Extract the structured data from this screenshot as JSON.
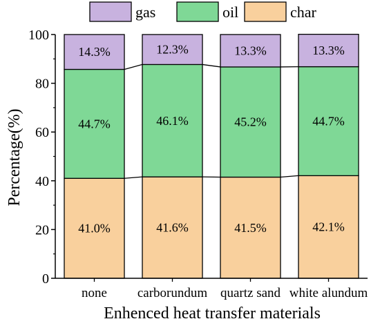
{
  "chart_data": {
    "type": "bar",
    "stacked": true,
    "xlabel": "Enhenced heat transfer materials",
    "ylabel": "Percentage(%)",
    "ylim": [
      0,
      100
    ],
    "yticks": [
      "0",
      "20",
      "40",
      "60",
      "80",
      "100"
    ],
    "grid": false,
    "legend_position": "top",
    "categories": [
      "none",
      "carborundum",
      "quartz sand",
      "white alundum"
    ],
    "series": [
      {
        "name": "char",
        "color": "#f9d09d",
        "values": [
          41.0,
          41.6,
          41.5,
          42.1
        ],
        "labels": [
          "41.0%",
          "41.6%",
          "41.5%",
          "42.1%"
        ]
      },
      {
        "name": "oil",
        "color": "#7fd896",
        "values": [
          44.7,
          46.1,
          45.2,
          44.7
        ],
        "labels": [
          "44.7%",
          "46.1%",
          "45.2%",
          "44.7%"
        ]
      },
      {
        "name": "gas",
        "color": "#c8b2df",
        "values": [
          14.3,
          12.3,
          13.3,
          13.3
        ],
        "labels": [
          "14.3%",
          "12.3%",
          "13.3%",
          "13.3%"
        ]
      }
    ],
    "legend_order": [
      "gas",
      "oil",
      "char"
    ]
  }
}
